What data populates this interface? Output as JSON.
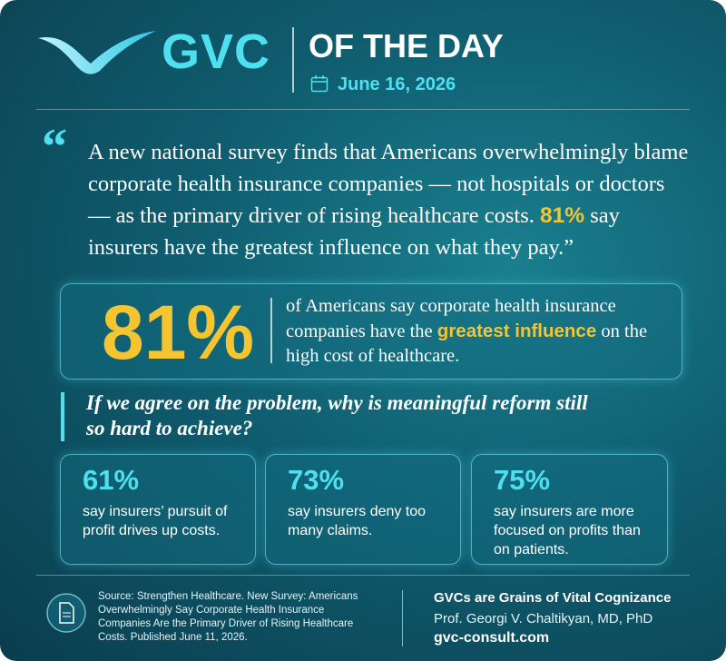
{
  "header": {
    "brand": "GVC",
    "title": "OF THE DAY",
    "date": "June 16, 2026"
  },
  "quote": {
    "mark": "“",
    "text": "A new national survey finds that Americans overwhelmingly blame corporate health insurance companies — not hospitals or doctors — as the primary driver of rising healthcare costs. ",
    "highlight": "81%",
    "text_end": " say insurers have the greatest influence on what they pay.”"
  },
  "key_stat": {
    "value": "81%",
    "text_before": "of Americans say corporate health insurance companies have the ",
    "highlight": "greatest influence",
    "text_after": " on the high cost of healthcare."
  },
  "question": "If we agree on the problem, why is meaningful reform still so hard to achieve?",
  "stats": [
    {
      "value": "61%",
      "label": "say insurers’ pursuit of profit drives up costs."
    },
    {
      "value": "73%",
      "label": "say insurers deny too many claims."
    },
    {
      "value": "75%",
      "label": "say insurers are more focused on profits than on patients."
    }
  ],
  "footer": {
    "source": "Source: Strengthen Healthcare. New Survey: Americans Overwhelmingly Say Corporate Health Insurance Companies Are the Primary Driver of Rising Healthcare Costs. Published June 11, 2026.",
    "tagline": "GVCs are Grains of Vital Cognizance",
    "author": "Prof. Georgi V. Chaltikyan, MD, PhD",
    "website": "gvc-consult.com"
  }
}
